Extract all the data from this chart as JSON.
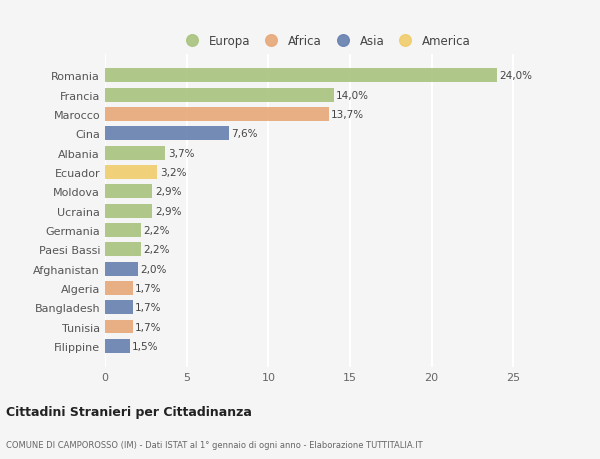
{
  "countries": [
    "Romania",
    "Francia",
    "Marocco",
    "Cina",
    "Albania",
    "Ecuador",
    "Moldova",
    "Ucraina",
    "Germania",
    "Paesi Bassi",
    "Afghanistan",
    "Algeria",
    "Bangladesh",
    "Tunisia",
    "Filippine"
  ],
  "values": [
    24.0,
    14.0,
    13.7,
    7.6,
    3.7,
    3.2,
    2.9,
    2.9,
    2.2,
    2.2,
    2.0,
    1.7,
    1.7,
    1.7,
    1.5
  ],
  "labels": [
    "24,0%",
    "14,0%",
    "13,7%",
    "7,6%",
    "3,7%",
    "3,2%",
    "2,9%",
    "2,9%",
    "2,2%",
    "2,2%",
    "2,0%",
    "1,7%",
    "1,7%",
    "1,7%",
    "1,5%"
  ],
  "continents": [
    "Europa",
    "Europa",
    "Africa",
    "Asia",
    "Europa",
    "America",
    "Europa",
    "Europa",
    "Europa",
    "Europa",
    "Asia",
    "Africa",
    "Asia",
    "Africa",
    "Asia"
  ],
  "colors": {
    "Europa": "#a8c47e",
    "Africa": "#e8a878",
    "Asia": "#6680b0",
    "America": "#f0cc6a"
  },
  "legend_order": [
    "Europa",
    "Africa",
    "Asia",
    "America"
  ],
  "title": "Cittadini Stranieri per Cittadinanza",
  "subtitle": "COMUNE DI CAMPOROSSO (IM) - Dati ISTAT al 1° gennaio di ogni anno - Elaborazione TUTTITALIA.IT",
  "xlim": [
    0,
    27
  ],
  "xticks": [
    0,
    5,
    10,
    15,
    20,
    25
  ],
  "background_color": "#f5f5f5",
  "grid_color": "#ffffff",
  "bar_height": 0.72
}
